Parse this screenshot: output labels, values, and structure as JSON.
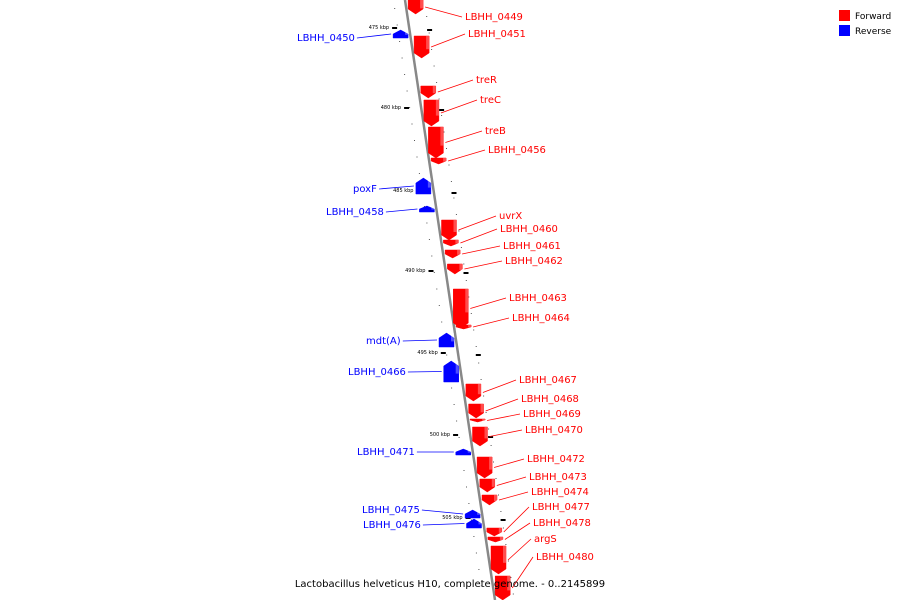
{
  "caption": "Lactobacillus helveticus H10, complete genome. - 0..2145899",
  "legend": {
    "items": [
      {
        "label": "Forward",
        "color": "#ff0000"
      },
      {
        "label": "Reverse",
        "color": "#0000ff"
      }
    ]
  },
  "ticks": [
    "475 kbp",
    "480 kbp",
    "485 kbp",
    "490 kbp",
    "495 kbp",
    "500 kbp",
    "505 kbp"
  ],
  "genes": [
    {
      "name": "LBHH_0449",
      "strand": "forward"
    },
    {
      "name": "LBHH_0450",
      "strand": "reverse"
    },
    {
      "name": "LBHH_0451",
      "strand": "forward"
    },
    {
      "name": "treR",
      "strand": "forward"
    },
    {
      "name": "treC",
      "strand": "forward"
    },
    {
      "name": "treB",
      "strand": "forward"
    },
    {
      "name": "LBHH_0456",
      "strand": "forward"
    },
    {
      "name": "poxF",
      "strand": "reverse"
    },
    {
      "name": "LBHH_0458",
      "strand": "reverse"
    },
    {
      "name": "uvrX",
      "strand": "forward"
    },
    {
      "name": "LBHH_0460",
      "strand": "forward"
    },
    {
      "name": "LBHH_0461",
      "strand": "forward"
    },
    {
      "name": "LBHH_0462",
      "strand": "forward"
    },
    {
      "name": "LBHH_0463",
      "strand": "forward"
    },
    {
      "name": "LBHH_0464",
      "strand": "forward"
    },
    {
      "name": "mdt(A)",
      "strand": "reverse"
    },
    {
      "name": "LBHH_0466",
      "strand": "reverse"
    },
    {
      "name": "LBHH_0467",
      "strand": "forward"
    },
    {
      "name": "LBHH_0468",
      "strand": "forward"
    },
    {
      "name": "LBHH_0469",
      "strand": "forward"
    },
    {
      "name": "LBHH_0470",
      "strand": "forward"
    },
    {
      "name": "LBHH_0471",
      "strand": "reverse"
    },
    {
      "name": "LBHH_0472",
      "strand": "forward"
    },
    {
      "name": "LBHH_0473",
      "strand": "forward"
    },
    {
      "name": "LBHH_0474",
      "strand": "forward"
    },
    {
      "name": "LBHH_0475",
      "strand": "reverse"
    },
    {
      "name": "LBHH_0476",
      "strand": "reverse"
    },
    {
      "name": "LBHH_0477",
      "strand": "forward"
    },
    {
      "name": "LBHH_0478",
      "strand": "forward"
    },
    {
      "name": "argS",
      "strand": "forward"
    },
    {
      "name": "LBHH_0480",
      "strand": "forward"
    }
  ]
}
